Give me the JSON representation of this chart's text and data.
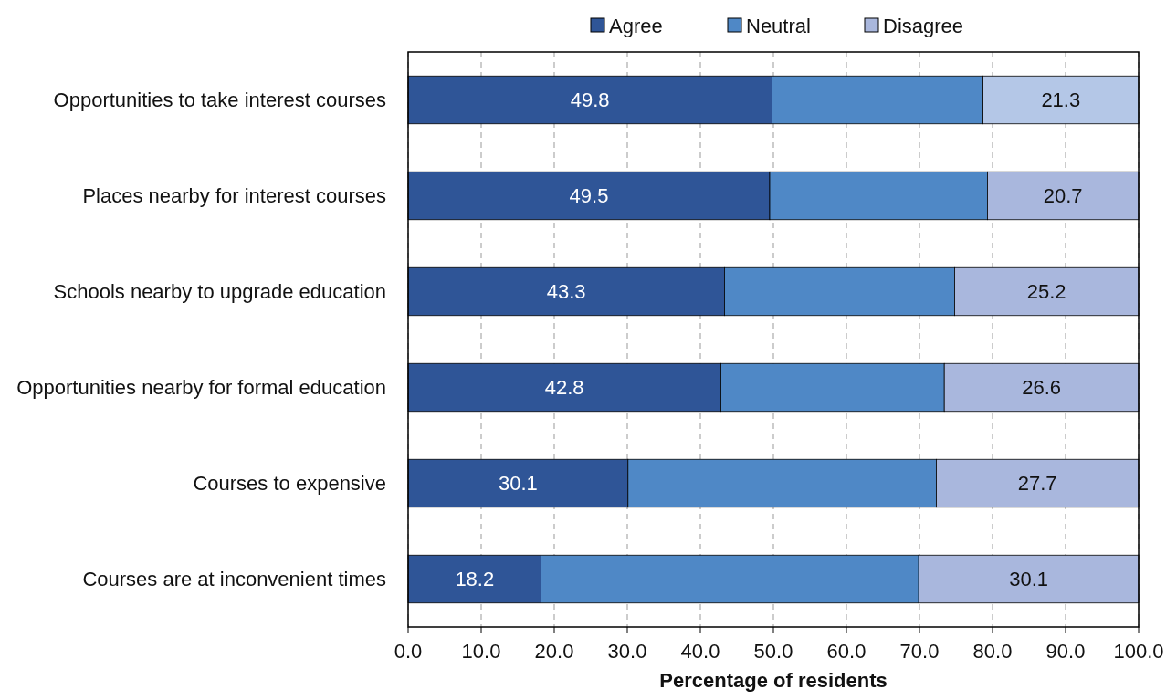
{
  "chart_data": {
    "type": "bar",
    "orientation": "horizontal",
    "stacked": true,
    "xlabel": "Percentage of residents",
    "categories": [
      "Opportunities to take interest courses",
      "Places nearby for interest courses",
      "Schools nearby to upgrade education",
      "Opportunities nearby for formal education",
      "Courses to expensive",
      "Courses are at inconvenient times"
    ],
    "series": [
      {
        "name": "Agree",
        "color": "#2f5597",
        "values": [
          49.8,
          49.5,
          43.3,
          42.8,
          30.1,
          18.2
        ],
        "value_labels": [
          "49.8",
          "49.5",
          "43.3",
          "42.8",
          "30.1",
          "18.2"
        ]
      },
      {
        "name": "Neutral",
        "color": "#4f88c6",
        "values": [
          28.9,
          29.8,
          31.5,
          30.6,
          42.2,
          51.7
        ]
      },
      {
        "name": "Disagree",
        "color": "#a9b7dd",
        "colors": [
          "#b4c7e7",
          "#a9b7dd",
          "#a9b7dd",
          "#a9b7dd",
          "#a9b7dd",
          "#a9b7dd"
        ],
        "values": [
          21.3,
          20.7,
          25.2,
          26.6,
          27.7,
          30.1
        ],
        "value_labels": [
          "21.3",
          "20.7",
          "25.2",
          "26.6",
          "27.7",
          "30.1"
        ]
      }
    ],
    "xlim": [
      0,
      100
    ],
    "xticks": [
      {
        "value": 0,
        "label": "0.0"
      },
      {
        "value": 10,
        "label": "10.0"
      },
      {
        "value": 20,
        "label": "20.0"
      },
      {
        "value": 30,
        "label": "30.0"
      },
      {
        "value": 40,
        "label": "40.0"
      },
      {
        "value": 50,
        "label": "50.0"
      },
      {
        "value": 60,
        "label": "60.0"
      },
      {
        "value": 70,
        "label": "70.0"
      },
      {
        "value": 80,
        "label": "80.0"
      },
      {
        "value": 90,
        "label": "90.0"
      },
      {
        "value": 100,
        "label": "100.0"
      }
    ],
    "grid": "x",
    "legend": "top"
  }
}
